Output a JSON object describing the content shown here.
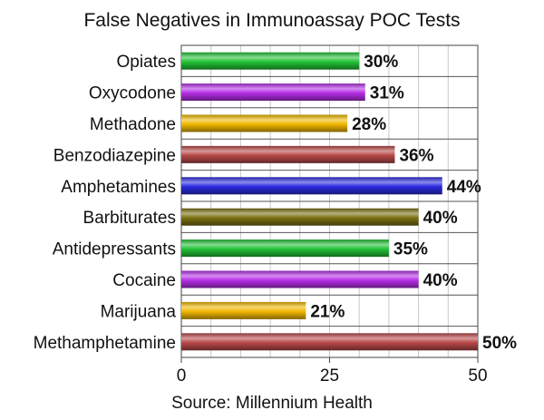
{
  "chart_data": {
    "type": "bar",
    "orientation": "horizontal",
    "title": "False Negatives in Immunoassay POC Tests",
    "source": "Source: Millennium Health",
    "categories": [
      "Opiates",
      "Oxycodone",
      "Methadone",
      "Benzodiazepine",
      "Amphetamines",
      "Barbiturates",
      "Antidepressants",
      "Cocaine",
      "Marijuana",
      "Methamphetamine"
    ],
    "values": [
      30,
      31,
      28,
      36,
      44,
      40,
      35,
      40,
      21,
      50
    ],
    "value_labels": [
      "30%",
      "31%",
      "28%",
      "36%",
      "44%",
      "40%",
      "35%",
      "40%",
      "21%",
      "50%"
    ],
    "colors": [
      "#22c236",
      "#b52ee6",
      "#f0b800",
      "#b84848",
      "#2a2ae0",
      "#7a7010",
      "#22c236",
      "#b52ee6",
      "#f0b800",
      "#b84848"
    ],
    "xlim": [
      0,
      50
    ],
    "xticks": [
      0,
      25,
      50
    ],
    "xtick_labels": [
      "0",
      "25",
      "50"
    ],
    "grid": "vertical"
  }
}
